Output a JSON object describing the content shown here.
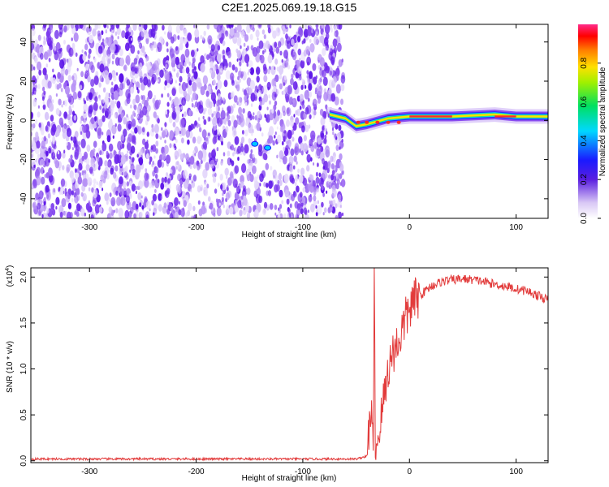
{
  "title": "C2E1.2025.069.19.18.G15",
  "chart_data": [
    {
      "type": "heatmap",
      "xlabel": "Height of straight line (km)",
      "ylabel": "Frequency (Hz)",
      "xlim": [
        -355,
        130
      ],
      "ylim": [
        -50,
        49
      ],
      "x_ticks": [
        -300,
        -200,
        -100,
        0,
        100
      ],
      "y_ticks": [
        -40,
        -20,
        0,
        20,
        40
      ],
      "x_tick_labels": [
        "-300",
        "-200",
        "-100",
        "0",
        "100"
      ],
      "y_tick_labels": [
        "-40",
        "-20",
        "0",
        "20",
        "40"
      ],
      "colorbar": {
        "label": "Normalized spectral amplitude",
        "range": [
          0,
          1
        ],
        "ticks": [
          0.0,
          0.2,
          0.4,
          0.6,
          0.8
        ],
        "tick_labels": [
          "0.0",
          "0.2",
          "0.4",
          "0.6",
          "0.8"
        ]
      },
      "signal_track": [
        {
          "x": -75,
          "freq": 3
        },
        {
          "x": -60,
          "freq": 1
        },
        {
          "x": -50,
          "freq": -3
        },
        {
          "x": -40,
          "freq": -2
        },
        {
          "x": -20,
          "freq": 1
        },
        {
          "x": 0,
          "freq": 2
        },
        {
          "x": 40,
          "freq": 2
        },
        {
          "x": 80,
          "freq": 3
        },
        {
          "x": 100,
          "freq": 2
        },
        {
          "x": 130,
          "freq": 2
        }
      ],
      "noise_region_end": -62
    },
    {
      "type": "line",
      "xlabel": "Height of straight line (km)",
      "ylabel": "SNR (10 * v/v)",
      "y_multiplier": "(x10",
      "y_multiplier_exp": "4",
      "xlim": [
        -355,
        130
      ],
      "ylim": [
        -0.02,
        2.1
      ],
      "x_ticks": [
        -300,
        -200,
        -100,
        0,
        100
      ],
      "y_ticks": [
        0.0,
        0.5,
        1.0,
        1.5,
        2.0
      ],
      "x_tick_labels": [
        "-300",
        "-200",
        "-100",
        "0",
        "100"
      ],
      "y_tick_labels": [
        "0.0",
        "0.5",
        "1.0",
        "1.5",
        "2.0"
      ],
      "color": "#e23b3b",
      "x": [
        -355,
        -300,
        -200,
        -100,
        -50,
        -40,
        -36,
        -34,
        -33,
        -32,
        -30,
        -25,
        -20,
        -15,
        -10,
        -5,
        0,
        5,
        10,
        15,
        20,
        30,
        40,
        50,
        60,
        70,
        80,
        90,
        100,
        110,
        120,
        130
      ],
      "values": [
        0.02,
        0.02,
        0.02,
        0.02,
        0.02,
        0.05,
        0.6,
        0.1,
        2.05,
        0.1,
        0.2,
        0.6,
        1.0,
        1.2,
        1.3,
        1.5,
        1.65,
        1.75,
        1.8,
        1.85,
        1.9,
        1.95,
        1.97,
        1.98,
        1.97,
        1.95,
        1.92,
        1.9,
        1.87,
        1.85,
        1.8,
        1.75
      ]
    }
  ]
}
